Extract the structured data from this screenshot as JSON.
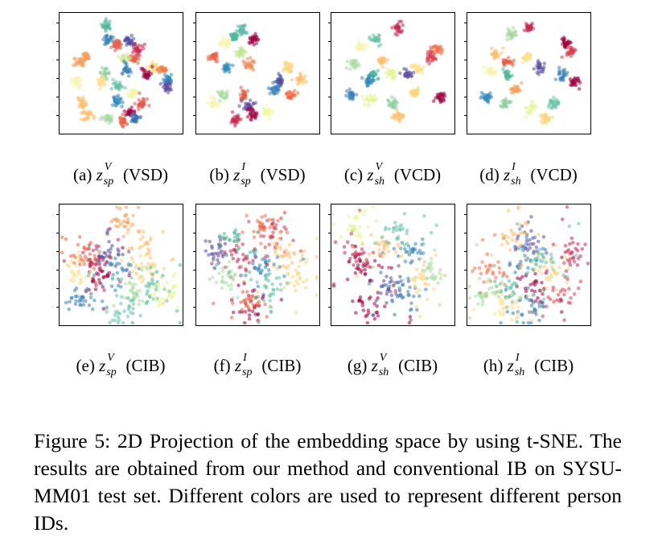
{
  "panels": [
    {
      "id": "a",
      "label": "(a)",
      "var": "z",
      "sup": "V",
      "sub": "sp",
      "suffix": "(VSD)"
    },
    {
      "id": "b",
      "label": "(b)",
      "var": "z",
      "sup": "I",
      "sub": "sp",
      "suffix": "(VSD)"
    },
    {
      "id": "c",
      "label": "(c)",
      "var": "z",
      "sup": "V",
      "sub": "sh",
      "suffix": "(VCD)"
    },
    {
      "id": "d",
      "label": "(d)",
      "var": "z",
      "sup": "I",
      "sub": "sh",
      "suffix": "(VCD)"
    },
    {
      "id": "e",
      "label": "(e)",
      "var": "z",
      "sup": "V",
      "sub": "sp",
      "suffix": "(CIB)"
    },
    {
      "id": "f",
      "label": "(f)",
      "var": "z",
      "sup": "I",
      "sub": "sp",
      "suffix": "(CIB)"
    },
    {
      "id": "g",
      "label": "(g)",
      "var": "z",
      "sup": "V",
      "sub": "sh",
      "suffix": "(CIB)"
    },
    {
      "id": "h",
      "label": "(h)",
      "var": "z",
      "sup": "I",
      "sub": "sh",
      "suffix": "(CIB)"
    }
  ],
  "figure_caption": "Figure 5: 2D Projection of the embedding space by using t-SNE. The results are obtained from our method and conventional IB on SYSU-MM01 test set. Different colors are used to represent different person IDs.",
  "chart_data": [
    {
      "type": "scatter",
      "panel": "a",
      "clustered": true,
      "xlim": [
        0,
        1
      ],
      "ylim": [
        0,
        1
      ],
      "clusters": [
        {
          "color": "#4fb89b",
          "x": 0.37,
          "y": 0.94
        },
        {
          "color": "#4a4fa0",
          "x": 0.58,
          "y": 0.8
        },
        {
          "color": "#e05c4a",
          "x": 0.46,
          "y": 0.77
        },
        {
          "color": "#3a81b8",
          "x": 0.38,
          "y": 0.82
        },
        {
          "color": "#f1a05c",
          "x": 0.12,
          "y": 0.6
        },
        {
          "color": "#f1a05c",
          "x": 0.18,
          "y": 0.65
        },
        {
          "color": "#e96043",
          "x": 0.62,
          "y": 0.63
        },
        {
          "color": "#c62850",
          "x": 0.65,
          "y": 0.72
        },
        {
          "color": "#d2ec9f",
          "x": 0.52,
          "y": 0.64
        },
        {
          "color": "#f9da7c",
          "x": 0.8,
          "y": 0.55
        },
        {
          "color": "#3a81b8",
          "x": 0.55,
          "y": 0.53
        },
        {
          "color": "#8fcfa1",
          "x": 0.35,
          "y": 0.5
        },
        {
          "color": "#9e0142",
          "x": 0.73,
          "y": 0.5
        },
        {
          "color": "#f57a4a",
          "x": 0.88,
          "y": 0.53
        },
        {
          "color": "#fce08b",
          "x": 0.32,
          "y": 0.43
        },
        {
          "color": "#3288bd",
          "x": 0.92,
          "y": 0.45
        },
        {
          "color": "#5e4fa2",
          "x": 0.92,
          "y": 0.38
        },
        {
          "color": "#66c2a5",
          "x": 0.48,
          "y": 0.38
        },
        {
          "color": "#f6f4b0",
          "x": 0.1,
          "y": 0.42
        },
        {
          "color": "#fdbf6f",
          "x": 0.15,
          "y": 0.22
        },
        {
          "color": "#e15548",
          "x": 0.68,
          "y": 0.22
        },
        {
          "color": "#3288bd",
          "x": 0.46,
          "y": 0.24
        },
        {
          "color": "#f3f7a5",
          "x": 0.6,
          "y": 0.32
        },
        {
          "color": "#9e0142",
          "x": 0.58,
          "y": 0.14
        },
        {
          "color": "#3b6fb0",
          "x": 0.63,
          "y": 0.08
        },
        {
          "color": "#e96043",
          "x": 0.52,
          "y": 0.05
        },
        {
          "color": "#a5d9a0",
          "x": 0.38,
          "y": 0.08
        },
        {
          "color": "#fdbf6f",
          "x": 0.2,
          "y": 0.1
        }
      ]
    },
    {
      "type": "scatter",
      "panel": "b",
      "clustered": true,
      "xlim": [
        0,
        1
      ],
      "ylim": [
        0,
        1
      ],
      "clusters": [
        {
          "color": "#4fb89b",
          "x": 0.28,
          "y": 0.84
        },
        {
          "color": "#9e0142",
          "x": 0.45,
          "y": 0.82
        },
        {
          "color": "#5bb8a8",
          "x": 0.35,
          "y": 0.9
        },
        {
          "color": "#f6f4b0",
          "x": 0.2,
          "y": 0.78
        },
        {
          "color": "#e96043",
          "x": 0.1,
          "y": 0.66
        },
        {
          "color": "#c0e596",
          "x": 0.35,
          "y": 0.7
        },
        {
          "color": "#3288bd",
          "x": 0.22,
          "y": 0.55
        },
        {
          "color": "#ee8a57",
          "x": 0.42,
          "y": 0.58
        },
        {
          "color": "#f9d57b",
          "x": 0.78,
          "y": 0.55
        },
        {
          "color": "#fdbf6f",
          "x": 0.88,
          "y": 0.45
        },
        {
          "color": "#4a4fa0",
          "x": 0.7,
          "y": 0.42
        },
        {
          "color": "#3a81b8",
          "x": 0.65,
          "y": 0.35
        },
        {
          "color": "#e05c4a",
          "x": 0.38,
          "y": 0.3
        },
        {
          "color": "#5e4fa2",
          "x": 0.42,
          "y": 0.2
        },
        {
          "color": "#9e0142",
          "x": 0.45,
          "y": 0.12
        },
        {
          "color": "#c62850",
          "x": 0.3,
          "y": 0.07
        },
        {
          "color": "#f6f4b0",
          "x": 0.1,
          "y": 0.22
        },
        {
          "color": "#abdda4",
          "x": 0.18,
          "y": 0.3
        },
        {
          "color": "#f46d43",
          "x": 0.8,
          "y": 0.3
        },
        {
          "color": "#f3f7a5",
          "x": 0.58,
          "y": 0.14
        }
      ]
    },
    {
      "type": "scatter",
      "panel": "c",
      "clustered": true,
      "xlim": [
        0,
        1
      ],
      "ylim": [
        0,
        1
      ],
      "clusters": [
        {
          "color": "#c62850",
          "x": 0.55,
          "y": 0.92
        },
        {
          "color": "#66c2a5",
          "x": 0.35,
          "y": 0.82
        },
        {
          "color": "#f6f4b0",
          "x": 0.2,
          "y": 0.75
        },
        {
          "color": "#fdbf6f",
          "x": 0.4,
          "y": 0.62
        },
        {
          "color": "#f46d43",
          "x": 0.9,
          "y": 0.72
        },
        {
          "color": "#d53e4f",
          "x": 0.84,
          "y": 0.65
        },
        {
          "color": "#abdda4",
          "x": 0.15,
          "y": 0.58
        },
        {
          "color": "#4fb89b",
          "x": 0.32,
          "y": 0.48
        },
        {
          "color": "#3288bd",
          "x": 0.28,
          "y": 0.42
        },
        {
          "color": "#5e4fa2",
          "x": 0.62,
          "y": 0.5
        },
        {
          "color": "#e6f598",
          "x": 0.48,
          "y": 0.5
        },
        {
          "color": "#fee08b",
          "x": 0.72,
          "y": 0.55
        },
        {
          "color": "#9e0142",
          "x": 0.93,
          "y": 0.28
        },
        {
          "color": "#3a81b8",
          "x": 0.12,
          "y": 0.3
        },
        {
          "color": "#e6f598",
          "x": 0.3,
          "y": 0.25
        },
        {
          "color": "#8fcfa1",
          "x": 0.5,
          "y": 0.22
        },
        {
          "color": "#fdbf6f",
          "x": 0.55,
          "y": 0.1
        },
        {
          "color": "#f9d57b",
          "x": 0.7,
          "y": 0.32
        }
      ]
    },
    {
      "type": "scatter",
      "panel": "d",
      "clustered": true,
      "xlim": [
        0,
        1
      ],
      "ylim": [
        0,
        1
      ],
      "clusters": [
        {
          "color": "#c62850",
          "x": 0.5,
          "y": 0.92
        },
        {
          "color": "#a5d9a0",
          "x": 0.35,
          "y": 0.86
        },
        {
          "color": "#fdbf6f",
          "x": 0.2,
          "y": 0.68
        },
        {
          "color": "#d53e4f",
          "x": 0.88,
          "y": 0.7
        },
        {
          "color": "#9e0142",
          "x": 0.84,
          "y": 0.78
        },
        {
          "color": "#e96043",
          "x": 0.3,
          "y": 0.6
        },
        {
          "color": "#5e4fa2",
          "x": 0.6,
          "y": 0.55
        },
        {
          "color": "#fee08b",
          "x": 0.48,
          "y": 0.65
        },
        {
          "color": "#4fb89b",
          "x": 0.3,
          "y": 0.48
        },
        {
          "color": "#f6f4b0",
          "x": 0.15,
          "y": 0.52
        },
        {
          "color": "#3a81b8",
          "x": 0.8,
          "y": 0.48
        },
        {
          "color": "#9e0142",
          "x": 0.92,
          "y": 0.42
        },
        {
          "color": "#3288bd",
          "x": 0.12,
          "y": 0.28
        },
        {
          "color": "#8fcfa1",
          "x": 0.28,
          "y": 0.22
        },
        {
          "color": "#66c2a5",
          "x": 0.72,
          "y": 0.22
        },
        {
          "color": "#e6f598",
          "x": 0.52,
          "y": 0.18
        },
        {
          "color": "#f9d57b",
          "x": 0.65,
          "y": 0.08
        },
        {
          "color": "#f1a05c",
          "x": 0.38,
          "y": 0.35
        }
      ]
    },
    {
      "type": "scatter",
      "panel": "e",
      "clustered": false,
      "xlim": [
        0,
        1
      ],
      "ylim": [
        0,
        1
      ],
      "clusters": [
        {
          "color": "#f1a05c",
          "x": 0.52,
          "y": 0.9
        },
        {
          "color": "#fdbf6f",
          "x": 0.7,
          "y": 0.68
        },
        {
          "color": "#c62850",
          "x": 0.25,
          "y": 0.55
        },
        {
          "color": "#3288bd",
          "x": 0.45,
          "y": 0.45
        },
        {
          "color": "#9e0142",
          "x": 0.3,
          "y": 0.42
        },
        {
          "color": "#5e4fa2",
          "x": 0.38,
          "y": 0.6
        },
        {
          "color": "#f9d57b",
          "x": 0.72,
          "y": 0.45
        },
        {
          "color": "#4fb89b",
          "x": 0.8,
          "y": 0.3
        },
        {
          "color": "#e6f598",
          "x": 0.9,
          "y": 0.25
        },
        {
          "color": "#3a81b8",
          "x": 0.15,
          "y": 0.2
        },
        {
          "color": "#e96043",
          "x": 0.2,
          "y": 0.6
        },
        {
          "color": "#abdda4",
          "x": 0.6,
          "y": 0.22
        },
        {
          "color": "#fee08b",
          "x": 0.1,
          "y": 0.45
        },
        {
          "color": "#66c2a5",
          "x": 0.55,
          "y": 0.1
        }
      ]
    },
    {
      "type": "scatter",
      "panel": "f",
      "clustered": false,
      "xlim": [
        0,
        1
      ],
      "ylim": [
        0,
        1
      ],
      "clusters": [
        {
          "color": "#f46d43",
          "x": 0.55,
          "y": 0.88
        },
        {
          "color": "#d53e4f",
          "x": 0.65,
          "y": 0.8
        },
        {
          "color": "#5e4fa2",
          "x": 0.12,
          "y": 0.62
        },
        {
          "color": "#c62850",
          "x": 0.35,
          "y": 0.55
        },
        {
          "color": "#fdbf6f",
          "x": 0.75,
          "y": 0.6
        },
        {
          "color": "#f9d57b",
          "x": 0.85,
          "y": 0.4
        },
        {
          "color": "#3288bd",
          "x": 0.55,
          "y": 0.45
        },
        {
          "color": "#abdda4",
          "x": 0.22,
          "y": 0.38
        },
        {
          "color": "#9e0142",
          "x": 0.45,
          "y": 0.12
        },
        {
          "color": "#e96043",
          "x": 0.4,
          "y": 0.2
        },
        {
          "color": "#4fb89b",
          "x": 0.3,
          "y": 0.72
        },
        {
          "color": "#66c2a5",
          "x": 0.62,
          "y": 0.3
        }
      ]
    },
    {
      "type": "scatter",
      "panel": "g",
      "clustered": false,
      "xlim": [
        0,
        1
      ],
      "ylim": [
        0,
        1
      ],
      "clusters": [
        {
          "color": "#c62850",
          "x": 0.15,
          "y": 0.6
        },
        {
          "color": "#9e0142",
          "x": 0.22,
          "y": 0.5
        },
        {
          "color": "#3288bd",
          "x": 0.65,
          "y": 0.65
        },
        {
          "color": "#5e4fa2",
          "x": 0.45,
          "y": 0.3
        },
        {
          "color": "#9e0142",
          "x": 0.3,
          "y": 0.1
        },
        {
          "color": "#3a81b8",
          "x": 0.6,
          "y": 0.22
        },
        {
          "color": "#fdbf6f",
          "x": 0.4,
          "y": 0.62
        },
        {
          "color": "#abdda4",
          "x": 0.85,
          "y": 0.45
        },
        {
          "color": "#66c2a5",
          "x": 0.55,
          "y": 0.8
        },
        {
          "color": "#f9d57b",
          "x": 0.75,
          "y": 0.35
        },
        {
          "color": "#e6f598",
          "x": 0.2,
          "y": 0.85
        }
      ]
    },
    {
      "type": "scatter",
      "panel": "h",
      "clustered": false,
      "xlim": [
        0,
        1
      ],
      "ylim": [
        0,
        1
      ],
      "clusters": [
        {
          "color": "#c62850",
          "x": 0.88,
          "y": 0.62
        },
        {
          "color": "#9e0142",
          "x": 0.55,
          "y": 0.32
        },
        {
          "color": "#d53e4f",
          "x": 0.78,
          "y": 0.22
        },
        {
          "color": "#3288bd",
          "x": 0.45,
          "y": 0.55
        },
        {
          "color": "#5e4fa2",
          "x": 0.5,
          "y": 0.7
        },
        {
          "color": "#fdbf6f",
          "x": 0.35,
          "y": 0.8
        },
        {
          "color": "#f46d43",
          "x": 0.15,
          "y": 0.45
        },
        {
          "color": "#4fb89b",
          "x": 0.3,
          "y": 0.25
        },
        {
          "color": "#66c2a5",
          "x": 0.65,
          "y": 0.55
        },
        {
          "color": "#abdda4",
          "x": 0.1,
          "y": 0.25
        },
        {
          "color": "#3a81b8",
          "x": 0.55,
          "y": 0.1
        },
        {
          "color": "#f9d57b",
          "x": 0.7,
          "y": 0.45
        },
        {
          "color": "#fee08b",
          "x": 0.3,
          "y": 0.12
        }
      ]
    }
  ]
}
